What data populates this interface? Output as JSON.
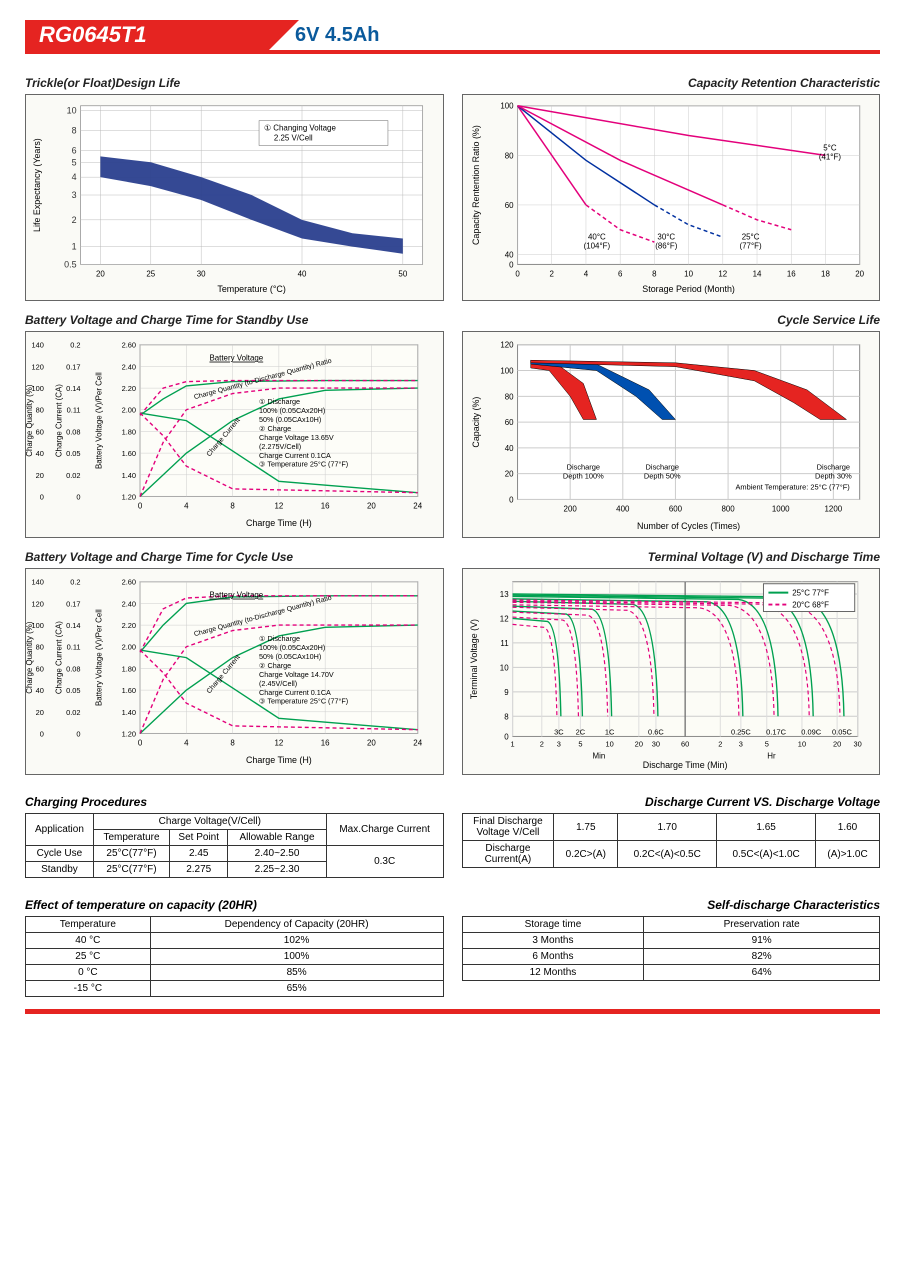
{
  "header": {
    "model": "RG0645T1",
    "spec": "6V  4.5Ah"
  },
  "charts": {
    "trickle": {
      "title": "Trickle(or Float)Design Life",
      "xlabel": "Temperature (°C)",
      "ylabel": "Life Expectancy (Years)",
      "x_ticks": [
        20,
        25,
        30,
        40,
        50
      ],
      "y_ticks": [
        0.5,
        1,
        2,
        3,
        4,
        5,
        6,
        8,
        10
      ],
      "band_upper": [
        [
          20,
          5.5
        ],
        [
          25,
          5
        ],
        [
          30,
          4
        ],
        [
          35,
          3
        ],
        [
          40,
          2
        ],
        [
          45,
          1.5
        ],
        [
          50,
          1.3
        ]
      ],
      "band_lower": [
        [
          20,
          4
        ],
        [
          25,
          3.5
        ],
        [
          30,
          2.8
        ],
        [
          35,
          2
        ],
        [
          40,
          1.3
        ],
        [
          45,
          1
        ],
        [
          50,
          0.8
        ]
      ],
      "band_color": "#2a3f8e",
      "annotation": "① Changing Voltage 2.25 V/Cell"
    },
    "retention": {
      "title": "Capacity Retention Characteristic",
      "xlabel": "Storage Period (Month)",
      "ylabel": "Capacity Rentention Ratio (%)",
      "x_ticks": [
        0,
        2,
        4,
        6,
        8,
        10,
        12,
        14,
        16,
        18,
        20
      ],
      "y_ticks": [
        0,
        40,
        60,
        80,
        100
      ],
      "curves": [
        {
          "label": "40°C (104°F)",
          "color": "#e3007b",
          "solid_x": [
            0,
            2,
            4
          ],
          "solid_y": [
            100,
            80,
            60
          ],
          "dash_x": [
            4,
            6,
            8
          ],
          "dash_y": [
            60,
            50,
            45
          ]
        },
        {
          "label": "30°C (86°F)",
          "color": "#0030a0",
          "solid_x": [
            0,
            4,
            8
          ],
          "solid_y": [
            100,
            78,
            60
          ],
          "dash_x": [
            8,
            10,
            12
          ],
          "dash_y": [
            60,
            52,
            47
          ]
        },
        {
          "label": "25°C (77°F)",
          "color": "#e3007b",
          "solid_x": [
            0,
            6,
            12
          ],
          "solid_y": [
            100,
            78,
            60
          ],
          "dash_x": [
            12,
            14,
            16
          ],
          "dash_y": [
            60,
            54,
            50
          ]
        },
        {
          "label": "5°C (41°F)",
          "color": "#e3007b",
          "solid_x": [
            0,
            10,
            18
          ],
          "solid_y": [
            100,
            88,
            80
          ],
          "dash_x": [],
          "dash_y": []
        }
      ]
    },
    "standby": {
      "title": "Battery Voltage and Charge Time for Standby Use",
      "xlabel": "Charge Time (H)",
      "y1label": "Charge Quantity (%)",
      "y2label": "Charge Current (CA)",
      "y3label": "Battery Voltage (V)/Per Cell",
      "x_ticks": [
        0,
        4,
        8,
        12,
        16,
        20,
        24
      ],
      "y1_ticks": [
        0,
        20,
        40,
        60,
        80,
        100,
        120,
        140
      ],
      "y2_ticks": [
        0,
        0.02,
        0.05,
        0.08,
        0.11,
        0.14,
        0.17,
        0.2
      ],
      "y3_ticks": [
        1.2,
        1.4,
        1.6,
        1.8,
        2.0,
        2.2,
        2.4,
        2.6
      ],
      "annotation": [
        "① Discharge",
        "    100% (0.05CAx20H)",
        "    50% (0.05CAx10H)",
        "② Charge",
        "    Charge Voltage 13.65V",
        "    (2.275V/Cell)",
        "    Charge Current 0.1CA",
        "③ Temperature 25°C (77°F)"
      ],
      "curves": {
        "bv_solid": {
          "color": "#e3007b",
          "x": [
            0,
            2,
            4,
            8,
            16,
            24
          ],
          "y": [
            1.95,
            2.1,
            2.22,
            2.26,
            2.27,
            2.27
          ]
        },
        "bv_dash": {
          "color": "#00a050",
          "x": [
            0,
            2,
            4,
            8,
            16,
            24
          ],
          "y": [
            1.95,
            2.2,
            2.26,
            2.27,
            2.27,
            2.27
          ]
        },
        "cq_solid": {
          "color": "#00a050",
          "x": [
            0,
            4,
            8,
            12,
            16,
            24
          ],
          "y": [
            0,
            40,
            70,
            90,
            98,
            100
          ]
        },
        "cq_dash": {
          "color": "#e3007b",
          "x": [
            0,
            2,
            4,
            8,
            12,
            24
          ],
          "y": [
            0,
            50,
            80,
            95,
            100,
            100
          ]
        },
        "cc_solid": {
          "color": "#00a050",
          "x": [
            0,
            4,
            8,
            12,
            24
          ],
          "y": [
            0.11,
            0.1,
            0.06,
            0.02,
            0.005
          ]
        },
        "cc_dash": {
          "color": "#e3007b",
          "x": [
            0,
            2,
            4,
            8,
            24
          ],
          "y": [
            0.11,
            0.08,
            0.04,
            0.01,
            0.005
          ]
        }
      }
    },
    "cycle_life": {
      "title": "Cycle Service Life",
      "xlabel": "Number of Cycles (Times)",
      "ylabel": "Capacity (%)",
      "x_ticks": [
        200,
        400,
        600,
        800,
        1000,
        1200
      ],
      "y_ticks": [
        0,
        20,
        40,
        60,
        80,
        100,
        120
      ],
      "note": "Ambient Temperature: 25°C (77°F)",
      "bands": [
        {
          "label": "Discharge Depth 100%",
          "color": "#e52421",
          "x_end": 300,
          "upper": [
            [
              50,
              108
            ],
            [
              150,
              105
            ],
            [
              250,
              90
            ],
            [
              300,
              62
            ]
          ],
          "lower": [
            [
              50,
              102
            ],
            [
              120,
              100
            ],
            [
              200,
              80
            ],
            [
              250,
              62
            ],
            [
              300,
              62
            ]
          ]
        },
        {
          "label": "Discharge Depth 50%",
          "color": "#0050b0",
          "x_end": 600,
          "upper": [
            [
              50,
              108
            ],
            [
              300,
              105
            ],
            [
              500,
              85
            ],
            [
              600,
              62
            ]
          ],
          "lower": [
            [
              50,
              105
            ],
            [
              300,
              100
            ],
            [
              450,
              80
            ],
            [
              550,
              62
            ],
            [
              600,
              62
            ]
          ]
        },
        {
          "label": "Discharge Depth 30%",
          "color": "#e52421",
          "x_end": 1250,
          "upper": [
            [
              50,
              108
            ],
            [
              600,
              106
            ],
            [
              900,
              100
            ],
            [
              1100,
              85
            ],
            [
              1250,
              62
            ]
          ],
          "lower": [
            [
              50,
              106
            ],
            [
              600,
              103
            ],
            [
              900,
              92
            ],
            [
              1050,
              75
            ],
            [
              1150,
              62
            ],
            [
              1250,
              62
            ]
          ]
        }
      ]
    },
    "cycle_use": {
      "title": "Battery Voltage and Charge Time for Cycle Use",
      "xlabel": "Charge Time (H)",
      "annotation": [
        "① Discharge",
        "    100% (0.05CAx20H)",
        "    50% (0.05CAx10H)",
        "② Charge",
        "    Charge Voltage 14.70V",
        "    (2.45V/Cell)",
        "    Charge Current 0.1CA",
        "③ Temperature 25°C (77°F)"
      ]
    },
    "terminal": {
      "title": "Terminal Voltage (V) and Discharge Time",
      "xlabel": "Discharge Time (Min)",
      "ylabel": "Terminal Voltage (V)",
      "y_ticks": [
        0,
        8,
        9,
        10,
        11,
        12,
        13
      ],
      "legend": [
        {
          "label": "25°C 77°F",
          "color": "#00a050"
        },
        {
          "label": "20°C 68°F",
          "color": "#e3007b"
        }
      ],
      "rate_labels": [
        "3C",
        "2C",
        "1C",
        "0.6C",
        "0.25C",
        "0.17C",
        "0.09C",
        "0.05C"
      ]
    }
  },
  "tables": {
    "charging_procedures": {
      "title": "Charging Procedures",
      "cols": [
        "Application",
        "Temperature",
        "Set Point",
        "Allowable Range",
        "Max.Charge Current"
      ],
      "header2": "Charge Voltage(V/Cell)",
      "rows": [
        [
          "Cycle Use",
          "25°C(77°F)",
          "2.45",
          "2.40~2.50",
          "0.3C"
        ],
        [
          "Standby",
          "25°C(77°F)",
          "2.275",
          "2.25~2.30",
          ""
        ]
      ]
    },
    "discharge_vs": {
      "title": "Discharge Current VS. Discharge Voltage",
      "rows": [
        [
          "Final Discharge Voltage V/Cell",
          "1.75",
          "1.70",
          "1.65",
          "1.60"
        ],
        [
          "Discharge Current(A)",
          "0.2C>(A)",
          "0.2C<(A)<0.5C",
          "0.5C<(A)<1.0C",
          "(A)>1.0C"
        ]
      ]
    },
    "temp_capacity": {
      "title": "Effect of temperature on capacity (20HR)",
      "cols": [
        "Temperature",
        "Dependency of Capacity (20HR)"
      ],
      "rows": [
        [
          "40 °C",
          "102%"
        ],
        [
          "25 °C",
          "100%"
        ],
        [
          "0 °C",
          "85%"
        ],
        [
          "-15 °C",
          "65%"
        ]
      ]
    },
    "self_discharge": {
      "title": "Self-discharge Characteristics",
      "cols": [
        "Storage time",
        "Preservation rate"
      ],
      "rows": [
        [
          "3 Months",
          "91%"
        ],
        [
          "6 Months",
          "82%"
        ],
        [
          "12 Months",
          "64%"
        ]
      ]
    }
  }
}
